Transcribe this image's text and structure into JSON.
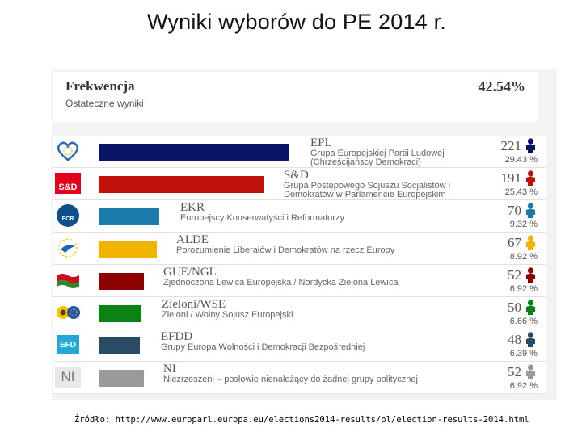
{
  "slide": {
    "title": "Wyniki wyborów do PE 2014 r.",
    "source": "Źródło: http://www.europarl.europa.eu/elections2014-results/pl/election-results-2014.html"
  },
  "header": {
    "turnout_label": "Frekwencja",
    "turnout_sub": "Ostateczne wyniki",
    "turnout_value": "42.54%"
  },
  "chart_data": {
    "type": "bar",
    "orientation": "horizontal",
    "categories": [
      "EPL",
      "S&D",
      "EKR",
      "ALDE",
      "GUE/NGL",
      "Zieloni/WSE",
      "EFDD",
      "NI"
    ],
    "values": [
      221,
      191,
      70,
      67,
      52,
      50,
      48,
      52
    ],
    "percentages": [
      "29.43 %",
      "25.43 %",
      "9.32 %",
      "8.92 %",
      "6.92 %",
      "6.66 %",
      "6.39 %",
      "6.92 %"
    ],
    "xlim": [
      0,
      221
    ],
    "grid": false,
    "legend": "none"
  },
  "groups": [
    {
      "name": "EPL",
      "desc": "Grupa Europejskiej Partii Ludowej",
      "desc2": "(Chrześcijańscy Demokraci)",
      "seats": "221",
      "pct": "29.43 %",
      "color": "#0a1464",
      "logo": "epp-heart-logo",
      "logo_text": ""
    },
    {
      "name": "S&D",
      "desc": "Grupa Postępowego Sojuszu Socjalistów i",
      "desc2": "Demokratów w Parlamencie Europejskim",
      "seats": "191",
      "pct": "25.43 %",
      "color": "#c0100a",
      "logo": "sd-logo",
      "logo_text": "S&D"
    },
    {
      "name": "EKR",
      "desc": "Europejscy Konserwatyści i Reformatorzy",
      "desc2": "",
      "seats": "70",
      "pct": "9.32 %",
      "color": "#1a7aaa",
      "logo": "ecr-lion-logo",
      "logo_text": "ECR"
    },
    {
      "name": "ALDE",
      "desc": "Porozumienie Liberałów i Demokratów na rzecz Europy",
      "desc2": "",
      "seats": "67",
      "pct": "8.92 %",
      "color": "#f0b400",
      "logo": "alde-stars-logo",
      "logo_text": ""
    },
    {
      "name": "GUE/NGL",
      "desc": "Zjednoczona Lewica Europejska / Nordycka Zielona Lewica",
      "desc2": "",
      "seats": "52",
      "pct": "6.92 %",
      "color": "#8c0000",
      "logo": "gue-flag-logo",
      "logo_text": ""
    },
    {
      "name": "Zieloni/WSE",
      "desc": "Zieloni / Wolny Sojusz Europejski",
      "desc2": "",
      "seats": "50",
      "pct": "6.66 %",
      "color": "#0a8214",
      "logo": "greens-sunflower-logo",
      "logo_text": ""
    },
    {
      "name": "EFDD",
      "desc": "Grupy Europa Wolności i Demokracji Bezpośredniej",
      "desc2": "",
      "seats": "48",
      "pct": "6.39 %",
      "color": "#2a4b64",
      "logo": "efd-logo",
      "logo_text": "EFD"
    },
    {
      "name": "NI",
      "desc": "Niezrzeszeni – posłowie nienależący do żadnej grupy politycznej",
      "desc2": "",
      "seats": "52",
      "pct": "6.92 %",
      "color": "#9a9a9a",
      "logo": "ni-logo",
      "logo_text": "NI"
    }
  ]
}
